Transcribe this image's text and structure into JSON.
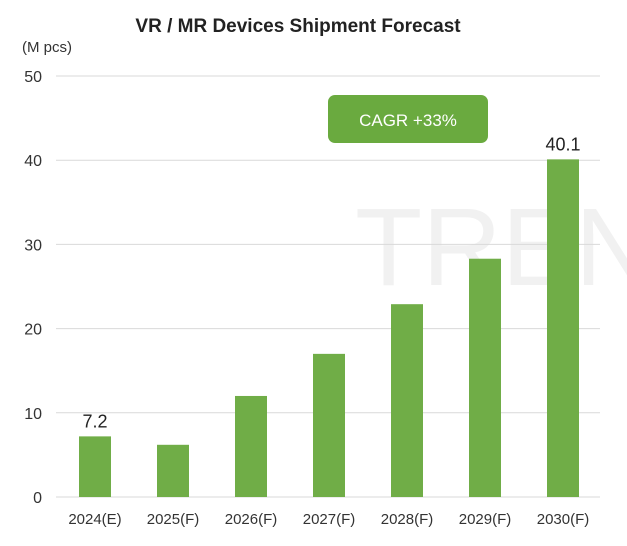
{
  "chart_data": {
    "type": "bar",
    "title": "VR / MR Devices Shipment Forecast",
    "ylabel": "(M pcs)",
    "xlabel": "",
    "ylim": [
      0,
      50
    ],
    "yticks": [
      0,
      10,
      20,
      30,
      40,
      50
    ],
    "grid": true,
    "categories": [
      "2024(E)",
      "2025(F)",
      "2026(F)",
      "2027(F)",
      "2028(F)",
      "2029(F)",
      "2030(F)"
    ],
    "values": [
      7.2,
      6.2,
      12.0,
      17.0,
      22.9,
      28.3,
      40.1
    ],
    "data_labels": [
      {
        "index": 0,
        "text": "7.2"
      },
      {
        "index": 6,
        "text": "40.1"
      }
    ],
    "annotation": "CAGR +33%",
    "colors": {
      "bar": "#70ad47",
      "badge": "#6aaa3f",
      "grid": "#d9d9d9"
    },
    "watermark": "TREN"
  }
}
